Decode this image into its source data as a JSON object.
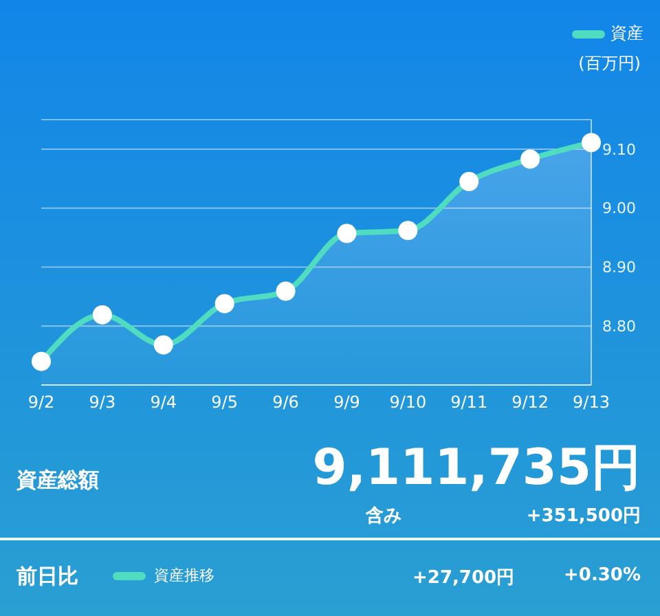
{
  "chart_data": {
    "type": "area",
    "ylabel": "(百万円)",
    "categories": [
      "9/2",
      "9/3",
      "9/4",
      "9/5",
      "9/6",
      "9/9",
      "9/10",
      "9/11",
      "9/12",
      "9/13"
    ],
    "series": [
      {
        "name": "資産",
        "color": "#4fdcc0",
        "values": [
          8.74,
          8.819,
          8.768,
          8.838,
          8.859,
          8.957,
          8.962,
          9.045,
          9.083,
          9.111
        ]
      }
    ],
    "ylim": [
      8.7,
      9.15
    ],
    "yticks": [
      {
        "value": 8.8,
        "label": "8.80"
      },
      {
        "value": 8.9,
        "label": "8.90"
      },
      {
        "value": 9.0,
        "label": "9.00"
      },
      {
        "value": 9.1,
        "label": "9.10"
      }
    ],
    "grid": "y",
    "legend": "top right",
    "marker": "circle",
    "annotations": [
      "資産総額",
      "9,111,735円",
      "含み",
      "+351,500円",
      "前日比",
      "資産推移",
      "+27,700円",
      "+0.30%"
    ]
  }
}
